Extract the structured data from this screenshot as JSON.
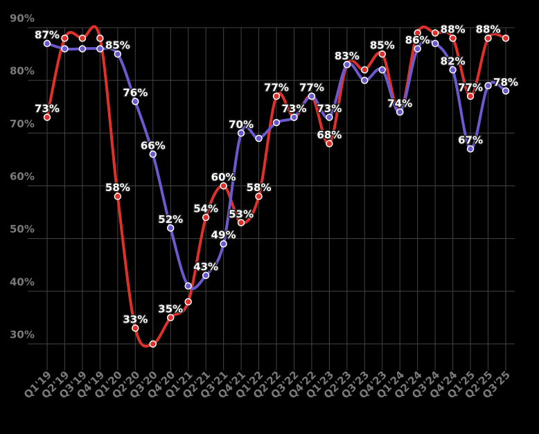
{
  "chart_data": {
    "type": "line",
    "categories": [
      "Q1'19",
      "Q2'19",
      "Q3'19",
      "Q4'19",
      "Q1'20",
      "Q2'20",
      "Q3'20",
      "Q4'20",
      "Q1'21",
      "Q2'21",
      "Q3'21",
      "Q4'21",
      "Q1'22",
      "Q2'22",
      "Q3'22",
      "Q4'22",
      "Q1'23",
      "Q2'23",
      "Q3'23",
      "Q4'23",
      "Q1'24",
      "Q2'24",
      "Q3'24",
      "Q4'24",
      "Q1'25",
      "Q2'25",
      "Q3'25"
    ],
    "series": [
      {
        "color": "#e0302a",
        "values": [
          73,
          88,
          88,
          88,
          58,
          33,
          30,
          35,
          38,
          54,
          60,
          53,
          58,
          77,
          73,
          77,
          68,
          83,
          82,
          85,
          74,
          89,
          89,
          88,
          77,
          88,
          88
        ],
        "value_labels": [
          "73%",
          null,
          null,
          null,
          "58%",
          "33%",
          null,
          "35%",
          null,
          "54%",
          "60%",
          "53%",
          "58%",
          "77%",
          null,
          null,
          "68%",
          null,
          null,
          "85%",
          null,
          null,
          null,
          "88%",
          "77%",
          "88%",
          null
        ]
      },
      {
        "color": "#6a5acd",
        "values": [
          87,
          86,
          86,
          86,
          85,
          76,
          66,
          52,
          41,
          43,
          49,
          70,
          69,
          72,
          73,
          77,
          73,
          83,
          80,
          82,
          74,
          86,
          87,
          82,
          67,
          79,
          78
        ],
        "value_labels": [
          "87%",
          null,
          null,
          null,
          "85%",
          "76%",
          "66%",
          "52%",
          null,
          "43%",
          "49%",
          "70%",
          null,
          null,
          "73%",
          "77%",
          "73%",
          "83%",
          null,
          null,
          "74%",
          "86%",
          null,
          "82%",
          "67%",
          null,
          "78%"
        ]
      }
    ],
    "ylim": [
      25,
      90
    ],
    "yticks": [
      {
        "value": 30,
        "label": "30%"
      },
      {
        "value": 40,
        "label": "40%"
      },
      {
        "value": 50,
        "label": "50%"
      },
      {
        "value": 60,
        "label": "60%"
      },
      {
        "value": 70,
        "label": "70%"
      },
      {
        "value": 80,
        "label": "80%"
      },
      {
        "value": 90,
        "label": "90%"
      }
    ],
    "grid": true
  }
}
